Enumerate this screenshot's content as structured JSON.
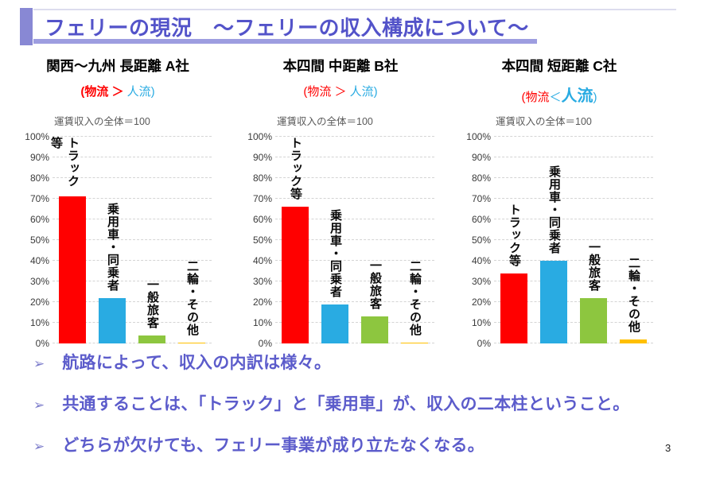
{
  "slide": {
    "title": "フェリーの現況　～フェリーの収入構成について～",
    "page_number": "3"
  },
  "bullets": [
    {
      "marker": "➢",
      "text": "航路によって、収入の内訳は様々。"
    },
    {
      "marker": "➢",
      "text": "共通することは、「トラック」と「乗用車」が、収入の二本柱ということ。"
    },
    {
      "marker": "➢",
      "text": "どちらが欠けても、フェリー事業が成り立たなくなる。"
    }
  ],
  "colors": {
    "title_text": "#5353c9",
    "bullet_text": "#5c5ccb",
    "accent_bar": "#8888d4",
    "underline": "#9d9de0",
    "truck_red": "#ff0000",
    "car_blue": "#29abe2",
    "passenger_green": "#8dc63f",
    "other_yellow": "#ffc000",
    "note_gray": "#595959"
  },
  "chart_data": [
    {
      "type": "bar",
      "title": "関西～九州 長距離 A社",
      "subtitle_parts": [
        {
          "text": "(物流",
          "color": "#ff0000",
          "bold": true,
          "big": false
        },
        {
          "text": " ＞ ",
          "color": "#ff0000",
          "bold": true,
          "big": false
        },
        {
          "text": "人流)",
          "color": "#29abe2",
          "bold": false,
          "big": false
        }
      ],
      "note": "運賃収入の全体＝100",
      "categories": [
        "トラック等",
        "乗用車・同乗者",
        "一般旅客",
        "二輪・その他"
      ],
      "category_keys": [
        "truck",
        "car",
        "general-passenger",
        "two-wheel-other"
      ],
      "values": [
        71,
        22,
        4,
        0.5
      ],
      "bar_colors": [
        "#ff0000",
        "#29abe2",
        "#8dc63f",
        "#ffc000"
      ],
      "xlabel": "",
      "ylabel": "",
      "ylim": [
        0,
        100
      ],
      "ytick_step": 10,
      "ytick_suffix": "%",
      "grid": true,
      "legend": false
    },
    {
      "type": "bar",
      "title": "本四間 中距離 B社",
      "subtitle_parts": [
        {
          "text": "(物流",
          "color": "#ff0000",
          "bold": false,
          "big": false
        },
        {
          "text": " ＞ ",
          "color": "#ff0000",
          "bold": false,
          "big": false
        },
        {
          "text": "人流)",
          "color": "#29abe2",
          "bold": false,
          "big": false
        }
      ],
      "note": "運賃収入の全体＝100",
      "categories": [
        "トラック等",
        "乗用車・同乗者",
        "一般旅客",
        "二輪・その他"
      ],
      "category_keys": [
        "truck",
        "car",
        "general-passenger",
        "two-wheel-other"
      ],
      "values": [
        66,
        19,
        13,
        0.5
      ],
      "bar_colors": [
        "#ff0000",
        "#29abe2",
        "#8dc63f",
        "#ffc000"
      ],
      "xlabel": "",
      "ylabel": "",
      "ylim": [
        0,
        100
      ],
      "ytick_step": 10,
      "ytick_suffix": "%",
      "grid": true,
      "legend": false
    },
    {
      "type": "bar",
      "title": "本四間 短距離 C社",
      "subtitle_parts": [
        {
          "text": "(物流",
          "color": "#ff0000",
          "bold": false,
          "big": false
        },
        {
          "text": "＜",
          "color": "#29abe2",
          "bold": false,
          "big": false
        },
        {
          "text": "人流",
          "color": "#29abe2",
          "bold": true,
          "big": true
        },
        {
          "text": ")",
          "color": "#29abe2",
          "bold": false,
          "big": false
        }
      ],
      "note": "運賃収入の全体＝100",
      "categories": [
        "トラック等",
        "乗用車・同乗者",
        "一般旅客",
        "二輪・その他"
      ],
      "category_keys": [
        "truck",
        "car",
        "general-passenger",
        "two-wheel-other"
      ],
      "values": [
        34,
        40,
        22,
        2
      ],
      "bar_colors": [
        "#ff0000",
        "#29abe2",
        "#8dc63f",
        "#ffc000"
      ],
      "xlabel": "",
      "ylabel": "",
      "ylim": [
        0,
        100
      ],
      "ytick_step": 10,
      "ytick_suffix": "%",
      "grid": true,
      "legend": false
    }
  ]
}
